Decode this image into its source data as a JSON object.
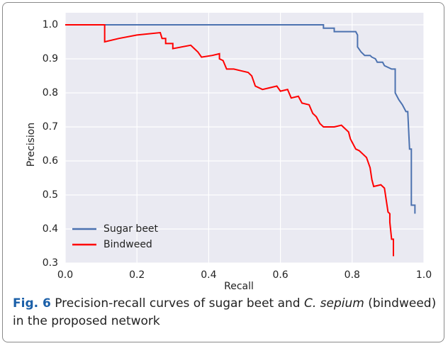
{
  "chart_data": {
    "type": "line",
    "xlabel": "Recall",
    "ylabel": "Precision",
    "xlim": [
      0,
      1
    ],
    "ylim": [
      0.3,
      1
    ],
    "xticks": [
      {
        "value": 0,
        "label": "0.0"
      },
      0.2,
      0.4,
      0.6,
      0.8,
      {
        "value": 1,
        "label": "1.0"
      }
    ],
    "yticks": [
      0.3,
      0.4,
      0.5,
      0.6,
      0.7,
      0.8,
      0.9,
      {
        "value": 1,
        "label": "1.0"
      }
    ],
    "grid": true,
    "legend": "lower left",
    "series": [
      {
        "name": "Sugar beet",
        "color": "#4c72b0",
        "x": [
          0,
          0.72,
          0.72,
          0.75,
          0.75,
          0.81,
          0.815,
          0.815,
          0.825,
          0.835,
          0.85,
          0.855,
          0.865,
          0.87,
          0.885,
          0.89,
          0.9,
          0.91,
          0.92,
          0.92,
          0.93,
          0.94,
          0.95,
          0.955,
          0.96,
          0.965,
          0.965,
          0.975,
          0.975
        ],
        "values": [
          1,
          1,
          0.99,
          0.99,
          0.98,
          0.98,
          0.97,
          0.935,
          0.92,
          0.91,
          0.91,
          0.905,
          0.9,
          0.89,
          0.89,
          0.88,
          0.875,
          0.87,
          0.87,
          0.8,
          0.78,
          0.765,
          0.745,
          0.745,
          0.635,
          0.635,
          0.47,
          0.47,
          0.445
        ]
      },
      {
        "name": "Bindweed",
        "color": "#ff0000",
        "x": [
          0,
          0.11,
          0.11,
          0.15,
          0.2,
          0.265,
          0.27,
          0.28,
          0.28,
          0.3,
          0.3,
          0.35,
          0.36,
          0.37,
          0.38,
          0.41,
          0.43,
          0.43,
          0.44,
          0.45,
          0.47,
          0.49,
          0.51,
          0.52,
          0.525,
          0.53,
          0.55,
          0.59,
          0.6,
          0.62,
          0.63,
          0.65,
          0.66,
          0.68,
          0.69,
          0.7,
          0.71,
          0.72,
          0.75,
          0.77,
          0.78,
          0.79,
          0.795,
          0.8,
          0.81,
          0.82,
          0.84,
          0.85,
          0.855,
          0.86,
          0.88,
          0.89,
          0.895,
          0.9,
          0.905,
          0.905,
          0.91,
          0.915,
          0.915
        ],
        "values": [
          1,
          1,
          0.95,
          0.96,
          0.97,
          0.977,
          0.96,
          0.96,
          0.945,
          0.945,
          0.93,
          0.94,
          0.93,
          0.92,
          0.905,
          0.91,
          0.915,
          0.9,
          0.895,
          0.87,
          0.87,
          0.865,
          0.86,
          0.85,
          0.835,
          0.82,
          0.81,
          0.82,
          0.805,
          0.81,
          0.785,
          0.79,
          0.77,
          0.765,
          0.74,
          0.73,
          0.71,
          0.7,
          0.7,
          0.705,
          0.695,
          0.685,
          0.665,
          0.655,
          0.635,
          0.63,
          0.61,
          0.58,
          0.545,
          0.525,
          0.53,
          0.52,
          0.485,
          0.45,
          0.445,
          0.42,
          0.37,
          0.37,
          0.32
        ]
      }
    ]
  },
  "caption": {
    "label": "Fig. 6",
    "parts": [
      "Precision-recall curves of sugar beet and ",
      "C. sepium",
      " (bindweed) in the proposed network"
    ]
  }
}
